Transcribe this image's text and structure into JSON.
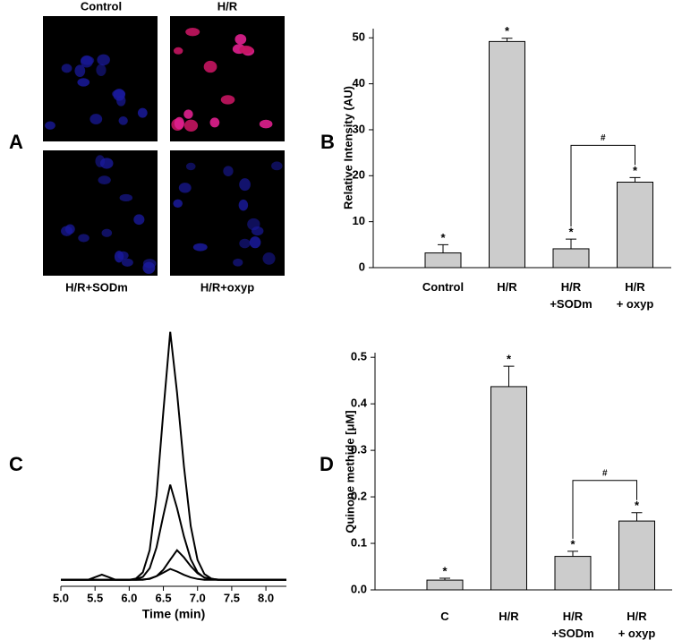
{
  "images": {
    "panel": "A",
    "labels": [
      "Control",
      "H/R",
      "H/R+SODm",
      "H/R+oxyp"
    ]
  },
  "chart_data": [
    {
      "type": "bar",
      "panel": "B",
      "ylabel": "Relative Intensity (AU)",
      "categories": [
        "Control",
        "H/R",
        "H/R\n+SODm",
        "H/R\n+ oxyp"
      ],
      "values": [
        3.2,
        49.2,
        4.1,
        18.6
      ],
      "errors": [
        1.8,
        0.7,
        2.1,
        1.0
      ],
      "annotations": [
        "*",
        "*",
        "*",
        "*"
      ],
      "bracket": {
        "between": [
          2,
          3
        ],
        "label": "#"
      },
      "color": "#cccccc",
      "ylim": [
        0,
        52
      ],
      "yticks": [
        0,
        10,
        20,
        30,
        40,
        50
      ]
    },
    {
      "type": "line",
      "panel": "C",
      "xlabel": "Time (min)",
      "x": [
        5.0,
        5.1,
        5.2,
        5.3,
        5.4,
        5.5,
        5.6,
        5.7,
        5.8,
        5.9,
        6.0,
        6.1,
        6.2,
        6.3,
        6.4,
        6.5,
        6.6,
        6.7,
        6.8,
        6.9,
        7.0,
        7.1,
        7.2,
        7.3,
        7.4,
        7.5,
        7.6,
        7.7,
        7.8,
        7.9,
        8.0,
        8.1,
        8.2,
        8.3
      ],
      "series": [
        {
          "color": "#000000",
          "values": [
            1.5,
            1.5,
            1.5,
            1.5,
            1.5,
            2.5,
            3.5,
            2.5,
            1.5,
            1.5,
            1.5,
            2.0,
            4.4,
            13.1,
            34.3,
            66.9,
            98,
            74.4,
            45.7,
            22.4,
            9.2,
            3.7,
            2.0,
            1.5,
            1.5,
            1.5,
            1.5,
            1.5,
            1.5,
            1.5,
            1.5,
            1.5,
            1.5,
            1.5
          ]
        },
        {
          "color": "#000000",
          "values": [
            1.5,
            1.5,
            1.5,
            1.5,
            1.5,
            1.5,
            1.5,
            1.5,
            1.5,
            1.5,
            1.5,
            1.7,
            2.6,
            6.0,
            14.1,
            26.5,
            38.5,
            29.4,
            18.4,
            9.5,
            4.4,
            2.3,
            1.7,
            1.5,
            1.5,
            1.5,
            1.5,
            1.5,
            1.5,
            1.5,
            1.5,
            1.5,
            1.5,
            1.5
          ]
        },
        {
          "color": "#000000",
          "values": [
            1.5,
            1.5,
            1.5,
            1.5,
            1.5,
            1.5,
            1.5,
            1.5,
            1.5,
            1.5,
            1.5,
            1.5,
            1.6,
            1.8,
            2.9,
            5.4,
            9.3,
            13,
            10.2,
            6.8,
            4.0,
            2.4,
            1.8,
            1.6,
            1.5,
            1.5,
            1.5,
            1.5,
            1.5,
            1.5,
            1.5,
            1.5,
            1.5,
            1.5
          ]
        },
        {
          "color": "#000000",
          "values": [
            1.5,
            1.5,
            1.5,
            1.5,
            1.5,
            1.5,
            1.5,
            1.5,
            1.5,
            1.5,
            1.5,
            1.5,
            1.5,
            2.0,
            2.9,
            4.3,
            5.7,
            4.7,
            3.4,
            2.4,
            1.8,
            1.5,
            1.5,
            1.5,
            1.5,
            1.5,
            1.5,
            1.5,
            1.5,
            1.5,
            1.5,
            1.5,
            1.5,
            1.5
          ]
        }
      ],
      "xlim": [
        5.0,
        8.3
      ],
      "ylim": [
        0,
        100
      ],
      "xticks": [
        {
          "value": 5,
          "label": "5.0"
        },
        5.5,
        {
          "value": 6,
          "label": "6.0"
        },
        6.5,
        {
          "value": 7,
          "label": "7.0"
        },
        7.5,
        {
          "value": 8,
          "label": "8.0"
        }
      ]
    },
    {
      "type": "bar",
      "panel": "D",
      "ylabel": "Quinone methide [μM]",
      "categories": [
        "C",
        "H/R",
        "H/R\n+SODm",
        "H/R\n+ oxyp"
      ],
      "values": [
        0.021,
        0.437,
        0.072,
        0.148
      ],
      "errors": [
        0.004,
        0.044,
        0.011,
        0.018
      ],
      "annotations": [
        "*",
        "*",
        "*",
        "*"
      ],
      "bracket": {
        "between": [
          2,
          3
        ],
        "label": "#"
      },
      "color": "#cccccc",
      "ylim": [
        0,
        0.51
      ],
      "yticks": [
        {
          "value": 0,
          "label": "0.0"
        },
        0.1,
        0.2,
        0.3,
        0.4,
        0.5
      ]
    }
  ]
}
